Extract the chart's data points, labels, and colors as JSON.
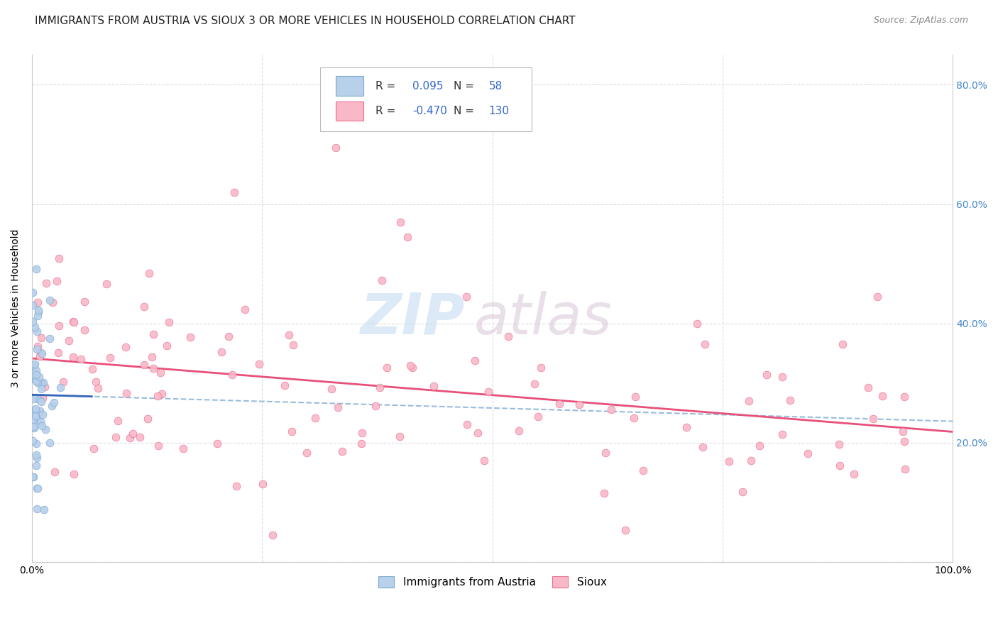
{
  "title": "IMMIGRANTS FROM AUSTRIA VS SIOUX 3 OR MORE VEHICLES IN HOUSEHOLD CORRELATION CHART",
  "source": "Source: ZipAtlas.com",
  "ylabel": "3 or more Vehicles in Household",
  "austria_R": 0.095,
  "austria_N": 58,
  "sioux_R": -0.47,
  "sioux_N": 130,
  "austria_fill_color": "#b8d0ea",
  "austria_edge_color": "#7aaad0",
  "sioux_fill_color": "#f9b8c8",
  "sioux_edge_color": "#e87090",
  "austria_line_color": "#3366bb",
  "austria_dash_color": "#99bbdd",
  "sioux_line_color": "#e8507a",
  "legend_austria_label": "Immigrants from Austria",
  "legend_sioux_label": "Sioux",
  "watermark_zip": "ZIP",
  "watermark_atlas": "atlas",
  "xlim": [
    0.0,
    1.0
  ],
  "ylim": [
    0.0,
    0.85
  ],
  "background_color": "#ffffff",
  "grid_color": "#dddddd",
  "title_fontsize": 11,
  "axis_label_fontsize": 10,
  "tick_fontsize": 10,
  "right_ytick_color": "#4488cc",
  "legend_r_n_color": "#3366cc",
  "legend_text_color": "#333333"
}
